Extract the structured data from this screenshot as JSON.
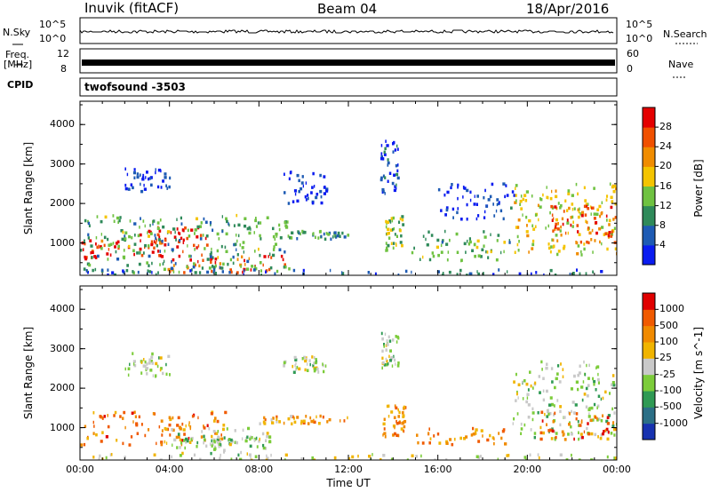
{
  "header": {
    "station": "Inuvik (fitACF)",
    "beam": "Beam 04",
    "date": "18/Apr/2016"
  },
  "nsky": {
    "label": "N.Sky",
    "tick_top": "10^5",
    "tick_bottom": "10^0",
    "right_label": "N.Search",
    "right_tick_top": "10^5",
    "right_tick_bottom": "10^0"
  },
  "freq": {
    "label_line1": "Freq.",
    "label_line2": "[MHz]",
    "tick_top": "12",
    "tick_bottom": "8",
    "right_label": "Nave",
    "right_tick_top": "60",
    "right_tick_bottom": "0"
  },
  "cpid": {
    "label": "CPID",
    "value": "twofsound -3503"
  },
  "chart_data": [
    {
      "type": "heatmap",
      "title": "",
      "ylabel": "Slant Range [km]",
      "xlabel": "",
      "x_range_hours": [
        0,
        24
      ],
      "ylim": [
        180,
        4590
      ],
      "y_ticks": [
        1000,
        2000,
        3000,
        4000
      ],
      "colorbar": {
        "label": "Power [dB]",
        "ticks": [
          "4",
          "8",
          "12",
          "16",
          "20",
          "24",
          "28"
        ],
        "colors": [
          "#0a1cf0",
          "#1e5bb4",
          "#2f8a5a",
          "#6fc241",
          "#f4c400",
          "#f08c00",
          "#f05000",
          "#e40000"
        ]
      },
      "regions": [
        {
          "t": [
            0.0,
            3.9
          ],
          "r": [
            600,
            1100
          ],
          "level": 0.88
        },
        {
          "t": [
            2.5,
            5.8
          ],
          "r": [
            750,
            1400
          ],
          "level": 0.92
        },
        {
          "t": [
            3.5,
            9.2
          ],
          "r": [
            250,
            700
          ],
          "level": 0.85
        },
        {
          "t": [
            0.0,
            9.5
          ],
          "r": [
            250,
            1700
          ],
          "level": 0.35
        },
        {
          "t": [
            9.2,
            12.0
          ],
          "r": [
            1100,
            1300
          ],
          "level": 0.3
        },
        {
          "t": [
            13.6,
            14.4
          ],
          "r": [
            800,
            1700
          ],
          "level": 0.45
        },
        {
          "t": [
            14.8,
            19.2
          ],
          "r": [
            550,
            1300
          ],
          "level": 0.38
        },
        {
          "t": [
            19.4,
            24.0
          ],
          "r": [
            700,
            2500
          ],
          "level": 0.55
        },
        {
          "t": [
            21.0,
            24.0
          ],
          "r": [
            1000,
            2000
          ],
          "level": 0.82
        },
        {
          "t": [
            2.0,
            4.0
          ],
          "r": [
            2300,
            2900
          ],
          "level": 0.08
        },
        {
          "t": [
            9.0,
            11.0
          ],
          "r": [
            2000,
            2800
          ],
          "level": 0.08
        },
        {
          "t": [
            13.4,
            14.2
          ],
          "r": [
            2200,
            3600
          ],
          "level": 0.12
        },
        {
          "t": [
            16.0,
            19.5
          ],
          "r": [
            1600,
            2500
          ],
          "level": 0.1
        },
        {
          "t": [
            0.0,
            24.0
          ],
          "r": [
            180,
            330
          ],
          "level": 0.2
        }
      ]
    },
    {
      "type": "heatmap",
      "title": "",
      "ylabel": "Slant Range [km]",
      "xlabel": "Time UT",
      "x_ticks": [
        "00:00",
        "04:00",
        "08:00",
        "12:00",
        "16:00",
        "20:00",
        "00:00"
      ],
      "x_range_hours": [
        0,
        24
      ],
      "ylim": [
        180,
        4590
      ],
      "y_ticks": [
        1000,
        2000,
        3000,
        4000
      ],
      "colorbar": {
        "label": "Velocity [m s^-1]",
        "ticks": [
          "1000",
          "500",
          "100",
          "25",
          "-25",
          "-100",
          "-500",
          "-1000"
        ],
        "colors": [
          "#1732b0",
          "#2b6f86",
          "#2f9a54",
          "#7ccc3a",
          "#c9c9c9",
          "#f0b400",
          "#f08a00",
          "#f05a00",
          "#e00000"
        ]
      },
      "regions": [
        {
          "t": [
            0.0,
            6.5
          ],
          "r": [
            550,
            1400
          ],
          "level": 0.75
        },
        {
          "t": [
            4.0,
            8.5
          ],
          "r": [
            300,
            1000
          ],
          "level": 0.45
        },
        {
          "t": [
            4.5,
            8.5
          ],
          "r": [
            500,
            800
          ],
          "level": 0.42
        },
        {
          "t": [
            8.0,
            12.0
          ],
          "r": [
            1100,
            1300
          ],
          "level": 0.68
        },
        {
          "t": [
            13.5,
            14.5
          ],
          "r": [
            700,
            1600
          ],
          "level": 0.72
        },
        {
          "t": [
            14.5,
            19.0
          ],
          "r": [
            550,
            1000
          ],
          "level": 0.7
        },
        {
          "t": [
            19.3,
            24.0
          ],
          "r": [
            700,
            2700
          ],
          "level": 0.45
        },
        {
          "t": [
            20.5,
            24.0
          ],
          "r": [
            700,
            1400
          ],
          "level": 0.8
        },
        {
          "t": [
            2.0,
            4.0
          ],
          "r": [
            2300,
            2900
          ],
          "level": 0.45
        },
        {
          "t": [
            9.0,
            11.0
          ],
          "r": [
            2400,
            2800
          ],
          "level": 0.45
        },
        {
          "t": [
            13.4,
            14.2
          ],
          "r": [
            2500,
            3400
          ],
          "level": 0.45
        },
        {
          "t": [
            0.0,
            24.0
          ],
          "r": [
            180,
            330
          ],
          "level": 0.5
        }
      ]
    }
  ]
}
